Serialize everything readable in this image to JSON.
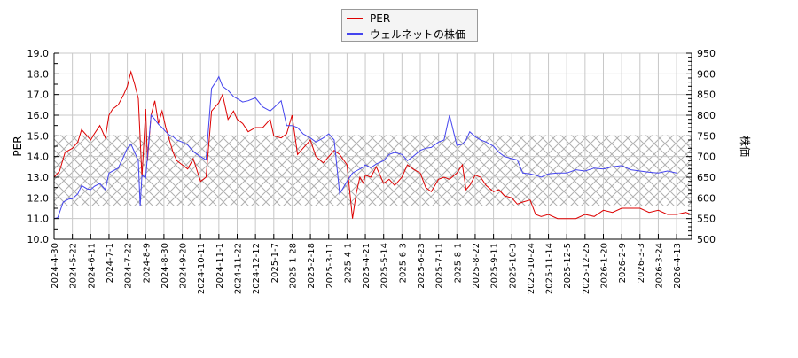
{
  "legend": {
    "items": [
      {
        "label": "PER",
        "color": "#dd0000"
      },
      {
        "label": "ウェルネットの株価",
        "color": "#4444ee"
      }
    ]
  },
  "axes": {
    "left_label": "PER",
    "right_label": "株価"
  },
  "chart_data": {
    "type": "line",
    "title": "",
    "xlabel": "",
    "ylabel": "PER",
    "y2label": "株価",
    "ylim": [
      10.0,
      19.0
    ],
    "y2lim": [
      500,
      950
    ],
    "yticks": [
      "10.0",
      "11.0",
      "12.0",
      "13.0",
      "14.0",
      "15.0",
      "16.0",
      "17.0",
      "18.0",
      "19.0"
    ],
    "y2ticks": [
      "500",
      "550",
      "600",
      "650",
      "700",
      "750",
      "800",
      "850",
      "900",
      "950"
    ],
    "grid": true,
    "legend_position": "top-center",
    "shaded_band": {
      "y2_range": [
        580,
        752
      ],
      "pattern": "cross-hatch"
    },
    "categories": [
      "2024-4-30",
      "2024-5-22",
      "2024-6-11",
      "2024-7-1",
      "2024-7-22",
      "2024-8-9",
      "2024-8-30",
      "2024-9-20",
      "2024-10-11",
      "2024-11-1",
      "2024-11-22",
      "2024-12-12",
      "2025-1-7",
      "2025-1-28",
      "2025-2-18",
      "2025-3-11",
      "2025-4-1",
      "2025-4-21",
      "2025-5-14",
      "2025-6-3",
      "2025-6-23",
      "2025-7-11",
      "2025-8-1",
      "2025-8-22",
      "2025-9-11",
      "2025-10-3",
      "2025-10-24",
      "2025-11-14",
      "2025-12-5",
      "2025-12-25",
      "2026-1-20",
      "2026-2-9",
      "2026-3-3",
      "2026-3-24",
      "2026-4-13"
    ],
    "series": [
      {
        "name": "PER",
        "axis": "left",
        "color": "#dd0000",
        "x_index": [
          0,
          0.3,
          0.6,
          1.0,
          1.3,
          1.5,
          1.8,
          2.0,
          2.2,
          2.5,
          2.8,
          3.0,
          3.2,
          3.5,
          3.8,
          4.0,
          4.2,
          4.4,
          4.6,
          4.8,
          5.0,
          5.1,
          5.3,
          5.5,
          5.7,
          5.9,
          6.1,
          6.3,
          6.5,
          6.7,
          7.0,
          7.3,
          7.6,
          8.0,
          8.3,
          8.6,
          8.9,
          9.0,
          9.2,
          9.5,
          9.8,
          10.0,
          10.3,
          10.6,
          11.0,
          11.4,
          11.8,
          12.0,
          12.4,
          12.7,
          13.0,
          13.3,
          13.6,
          14.0,
          14.3,
          14.7,
          15.0,
          15.3,
          15.6,
          16.0,
          16.3,
          16.5,
          16.7,
          16.9,
          17.0,
          17.3,
          17.6,
          18.0,
          18.3,
          18.6,
          19.0,
          19.3,
          19.6,
          20.0,
          20.3,
          20.6,
          21.0,
          21.3,
          21.6,
          22.0,
          22.3,
          22.5,
          22.7,
          23.0,
          23.3,
          23.6,
          24.0,
          24.3,
          24.6,
          25.0,
          25.3,
          25.6,
          26.0,
          26.3,
          26.6,
          27.0,
          27.5,
          28.0,
          28.5,
          29.0,
          29.5,
          30.0,
          30.5,
          31.0,
          31.5,
          32.0,
          32.5,
          33.0,
          33.5,
          34.0,
          34.5,
          34.8
        ],
        "values": [
          13.0,
          13.3,
          14.2,
          14.4,
          14.7,
          15.3,
          15.0,
          14.8,
          15.1,
          15.5,
          14.9,
          16.0,
          16.3,
          16.5,
          17.0,
          17.4,
          18.1,
          17.5,
          16.8,
          13.0,
          16.3,
          13.8,
          16.0,
          16.7,
          15.6,
          16.2,
          15.4,
          14.8,
          14.2,
          13.8,
          13.6,
          13.4,
          13.9,
          12.8,
          13.0,
          16.2,
          16.5,
          16.6,
          17.0,
          15.8,
          16.2,
          15.8,
          15.6,
          15.2,
          15.4,
          15.4,
          15.8,
          15.0,
          14.9,
          15.1,
          16.0,
          14.1,
          14.4,
          14.8,
          14.0,
          13.7,
          14.0,
          14.3,
          14.1,
          13.6,
          11.0,
          12.2,
          13.0,
          12.7,
          13.1,
          13.0,
          13.5,
          12.7,
          12.9,
          12.6,
          13.0,
          13.6,
          13.4,
          13.2,
          12.5,
          12.3,
          12.9,
          13.0,
          12.9,
          13.2,
          13.6,
          12.4,
          12.6,
          13.1,
          13.0,
          12.6,
          12.3,
          12.4,
          12.1,
          12.0,
          11.7,
          11.8,
          11.9,
          11.2,
          11.1,
          11.2,
          11.0,
          11.0,
          11.0,
          11.2,
          11.1,
          11.4,
          11.3,
          11.5,
          11.5,
          11.5,
          11.3,
          11.4,
          11.2,
          11.2,
          11.3,
          11.2
        ]
      },
      {
        "name": "ウェルネットの株価",
        "axis": "right",
        "color": "#4444ee",
        "x_index": [
          0,
          0.2,
          0.5,
          0.8,
          1.0,
          1.3,
          1.5,
          1.8,
          2.0,
          2.2,
          2.5,
          2.8,
          3.0,
          3.2,
          3.5,
          3.8,
          4.0,
          4.2,
          4.4,
          4.6,
          4.7,
          4.8,
          5.0,
          5.1,
          5.3,
          5.5,
          5.7,
          5.9,
          6.1,
          6.3,
          6.5,
          6.7,
          7.0,
          7.3,
          7.6,
          8.0,
          8.3,
          8.6,
          8.9,
          9.0,
          9.2,
          9.5,
          9.8,
          10.0,
          10.3,
          10.6,
          11.0,
          11.4,
          11.8,
          12.0,
          12.4,
          12.7,
          13.0,
          13.3,
          13.6,
          14.0,
          14.3,
          14.7,
          15.0,
          15.3,
          15.6,
          16.0,
          16.3,
          16.5,
          16.7,
          16.9,
          17.0,
          17.3,
          17.6,
          18.0,
          18.3,
          18.6,
          19.0,
          19.3,
          19.6,
          20.0,
          20.3,
          20.6,
          21.0,
          21.3,
          21.6,
          22.0,
          22.3,
          22.5,
          22.7,
          23.0,
          23.3,
          23.6,
          24.0,
          24.3,
          24.6,
          25.0,
          25.3,
          25.6,
          26.0,
          26.3,
          26.6,
          27.0,
          27.5,
          28.0,
          28.5,
          29.0,
          29.5,
          30.0,
          30.5,
          31.0,
          31.5,
          32.0,
          32.5,
          33.0,
          33.5,
          34.0,
          34.5,
          34.8
        ],
        "values": [
          550,
          552,
          590,
          597,
          598,
          610,
          630,
          622,
          620,
          628,
          635,
          620,
          660,
          665,
          672,
          700,
          720,
          730,
          710,
          690,
          580,
          655,
          648,
          700,
          800,
          790,
          778,
          770,
          760,
          752,
          748,
          740,
          735,
          728,
          712,
          700,
          692,
          865,
          885,
          893,
          870,
          860,
          845,
          840,
          832,
          835,
          842,
          820,
          810,
          818,
          835,
          775,
          775,
          770,
          755,
          745,
          735,
          745,
          755,
          740,
          610,
          640,
          660,
          665,
          670,
          675,
          680,
          673,
          682,
          690,
          705,
          710,
          705,
          690,
          700,
          715,
          720,
          722,
          735,
          740,
          800,
          727,
          730,
          740,
          760,
          748,
          740,
          735,
          725,
          710,
          700,
          695,
          692,
          660,
          658,
          655,
          650,
          658,
          660,
          660,
          668,
          665,
          672,
          670,
          675,
          678,
          668,
          665,
          662,
          660,
          665,
          660
        ]
      }
    ]
  }
}
